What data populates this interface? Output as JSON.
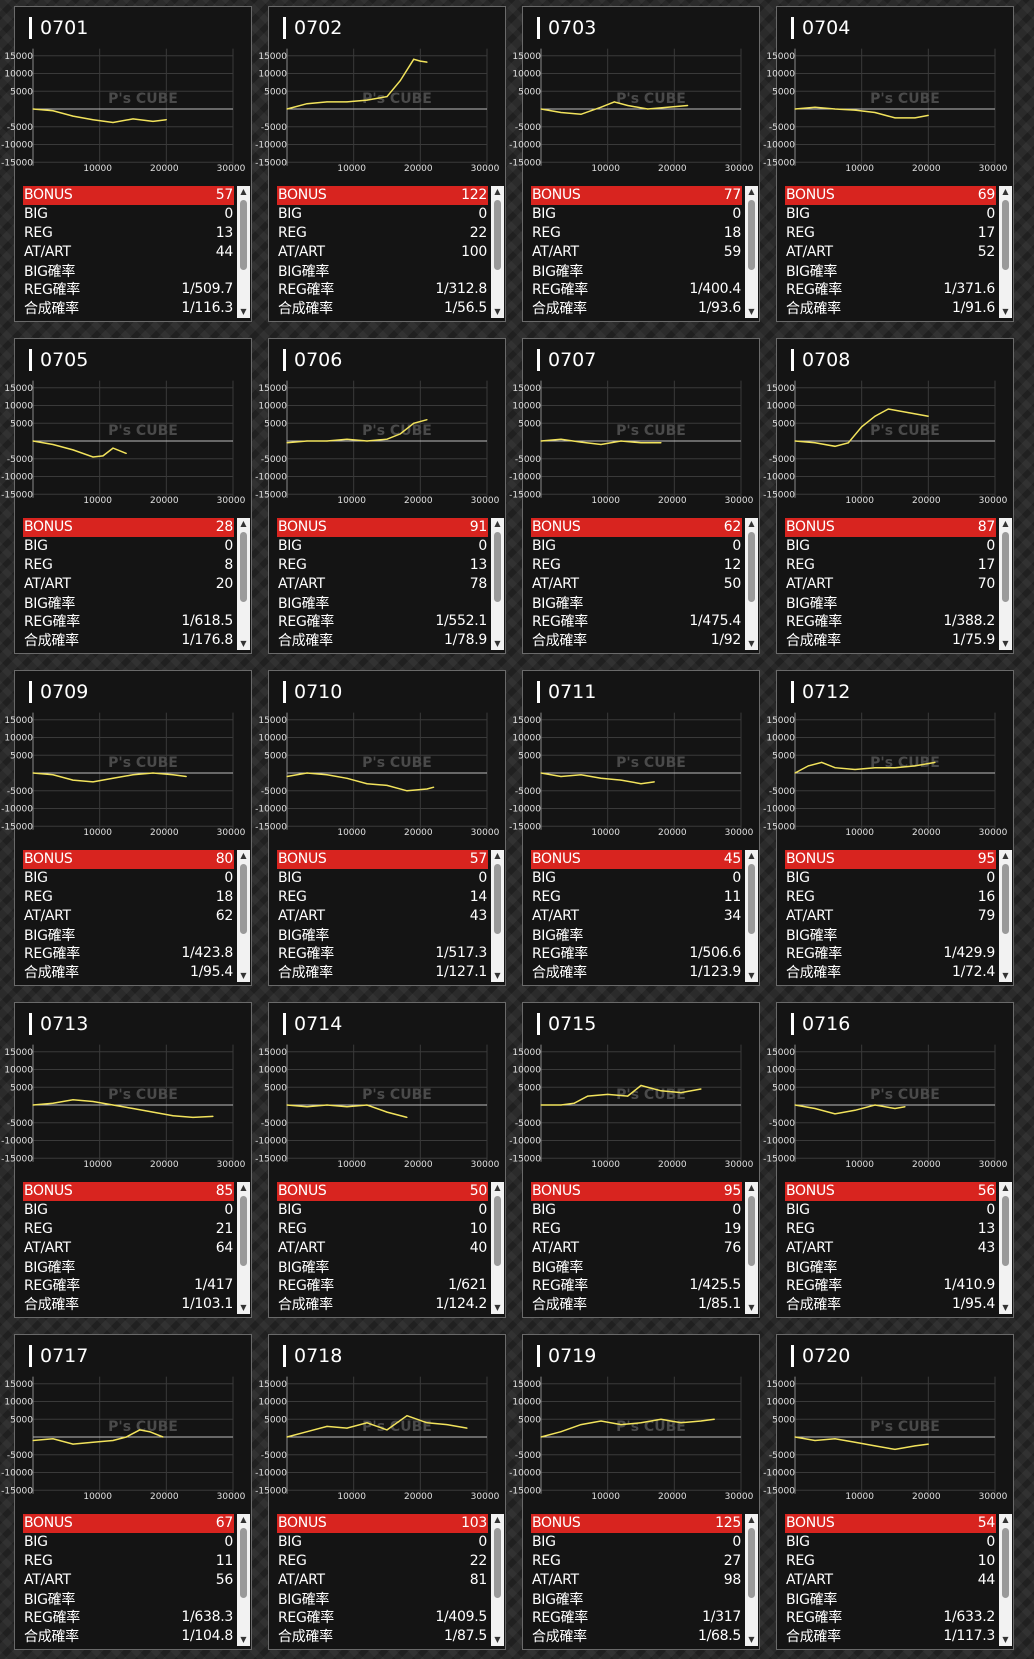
{
  "labels": {
    "bonus": "BONUS",
    "big": "BIG",
    "reg": "REG",
    "atart": "AT/ART",
    "big_rate": "BIG確率",
    "reg_rate": "REG確率",
    "total_rate": "合成確率"
  },
  "chart_axes": {
    "y_ticks": [
      "15000",
      "10000",
      "5000",
      "-5000",
      "-10000",
      "-15000"
    ],
    "x_ticks": [
      "10000",
      "20000",
      "30000"
    ],
    "watermark": "P's CUBE",
    "ylim": [
      -15000,
      15000
    ],
    "xlim": [
      0,
      30000
    ]
  },
  "colors": {
    "line": "#f2e35c",
    "bonus_bg": "#d8241f"
  },
  "scroll": {
    "up_icon": "▲",
    "down_icon": "▼"
  },
  "machines": [
    {
      "id": "0701",
      "bonus": "57",
      "big": "0",
      "reg": "13",
      "atart": "44",
      "big_rate": "",
      "reg_rate": "1/509.7",
      "total_rate": "1/116.3",
      "chart_data": {
        "type": "line",
        "x": [
          0,
          3000,
          6000,
          9000,
          12000,
          15000,
          18000,
          20000
        ],
        "y": [
          0,
          -500,
          -2000,
          -3000,
          -3800,
          -2800,
          -3500,
          -3000
        ]
      }
    },
    {
      "id": "0702",
      "bonus": "122",
      "big": "0",
      "reg": "22",
      "atart": "100",
      "big_rate": "",
      "reg_rate": "1/312.8",
      "total_rate": "1/56.5",
      "chart_data": {
        "type": "line",
        "x": [
          0,
          3000,
          6000,
          9000,
          12000,
          15000,
          17000,
          19000,
          20000,
          21000
        ],
        "y": [
          0,
          1500,
          2000,
          2000,
          2500,
          3500,
          8000,
          14000,
          13500,
          13200
        ]
      }
    },
    {
      "id": "0703",
      "bonus": "77",
      "big": "0",
      "reg": "18",
      "atart": "59",
      "big_rate": "",
      "reg_rate": "1/400.4",
      "total_rate": "1/93.6",
      "chart_data": {
        "type": "line",
        "x": [
          0,
          3000,
          6000,
          9000,
          11000,
          13000,
          16000,
          19000,
          22000
        ],
        "y": [
          0,
          -1000,
          -1500,
          500,
          2000,
          1000,
          0,
          500,
          1000
        ]
      }
    },
    {
      "id": "0704",
      "bonus": "69",
      "big": "0",
      "reg": "17",
      "atart": "52",
      "big_rate": "",
      "reg_rate": "1/371.6",
      "total_rate": "1/91.6",
      "chart_data": {
        "type": "line",
        "x": [
          0,
          3000,
          6000,
          9000,
          12000,
          15000,
          18000,
          20000
        ],
        "y": [
          0,
          500,
          0,
          -300,
          -1000,
          -2500,
          -2500,
          -1800
        ]
      }
    },
    {
      "id": "0705",
      "bonus": "28",
      "big": "0",
      "reg": "8",
      "atart": "20",
      "big_rate": "",
      "reg_rate": "1/618.5",
      "total_rate": "1/176.8",
      "chart_data": {
        "type": "line",
        "x": [
          0,
          3000,
          6000,
          9000,
          10500,
          12000,
          14000
        ],
        "y": [
          0,
          -1000,
          -2500,
          -4500,
          -4200,
          -2000,
          -3500
        ]
      }
    },
    {
      "id": "0706",
      "bonus": "91",
      "big": "0",
      "reg": "13",
      "atart": "78",
      "big_rate": "",
      "reg_rate": "1/552.1",
      "total_rate": "1/78.9",
      "chart_data": {
        "type": "line",
        "x": [
          0,
          3000,
          6000,
          9000,
          12000,
          15000,
          17000,
          19000,
          21000
        ],
        "y": [
          -500,
          0,
          0,
          500,
          0,
          500,
          2000,
          5000,
          6000
        ]
      }
    },
    {
      "id": "0707",
      "bonus": "62",
      "big": "0",
      "reg": "12",
      "atart": "50",
      "big_rate": "",
      "reg_rate": "1/475.4",
      "total_rate": "1/92",
      "chart_data": {
        "type": "line",
        "x": [
          0,
          3000,
          6000,
          9000,
          12000,
          15000,
          18000
        ],
        "y": [
          0,
          500,
          -300,
          -1000,
          0,
          -500,
          -500
        ]
      }
    },
    {
      "id": "0708",
      "bonus": "87",
      "big": "0",
      "reg": "17",
      "atart": "70",
      "big_rate": "",
      "reg_rate": "1/388.2",
      "total_rate": "1/75.9",
      "chart_data": {
        "type": "line",
        "x": [
          0,
          3000,
          6000,
          8000,
          10000,
          12000,
          14000,
          17000,
          20000
        ],
        "y": [
          0,
          -500,
          -1500,
          -500,
          4000,
          7000,
          9000,
          8000,
          7000
        ]
      }
    },
    {
      "id": "0709",
      "bonus": "80",
      "big": "0",
      "reg": "18",
      "atart": "62",
      "big_rate": "",
      "reg_rate": "1/423.8",
      "total_rate": "1/95.4",
      "chart_data": {
        "type": "line",
        "x": [
          0,
          3000,
          6000,
          9000,
          12000,
          15000,
          18000,
          21000,
          23000
        ],
        "y": [
          0,
          -500,
          -2000,
          -2500,
          -1500,
          -500,
          0,
          -500,
          -1000
        ]
      }
    },
    {
      "id": "0710",
      "bonus": "57",
      "big": "0",
      "reg": "14",
      "atart": "43",
      "big_rate": "",
      "reg_rate": "1/517.3",
      "total_rate": "1/127.1",
      "chart_data": {
        "type": "line",
        "x": [
          0,
          3000,
          6000,
          9000,
          12000,
          15000,
          18000,
          21000,
          22000
        ],
        "y": [
          -1000,
          0,
          -500,
          -1500,
          -3000,
          -3500,
          -5000,
          -4500,
          -4000
        ]
      }
    },
    {
      "id": "0711",
      "bonus": "45",
      "big": "0",
      "reg": "11",
      "atart": "34",
      "big_rate": "",
      "reg_rate": "1/506.6",
      "total_rate": "1/123.9",
      "chart_data": {
        "type": "line",
        "x": [
          0,
          3000,
          6000,
          9000,
          12000,
          15000,
          17000
        ],
        "y": [
          0,
          -1000,
          -500,
          -1500,
          -2000,
          -3000,
          -2500
        ]
      }
    },
    {
      "id": "0712",
      "bonus": "95",
      "big": "0",
      "reg": "16",
      "atart": "79",
      "big_rate": "",
      "reg_rate": "1/429.9",
      "total_rate": "1/72.4",
      "chart_data": {
        "type": "line",
        "x": [
          0,
          2000,
          4000,
          6000,
          9000,
          12000,
          15000,
          18000,
          21000
        ],
        "y": [
          0,
          2000,
          3000,
          1500,
          1000,
          1500,
          1500,
          2000,
          3000
        ]
      }
    },
    {
      "id": "0713",
      "bonus": "85",
      "big": "0",
      "reg": "21",
      "atart": "64",
      "big_rate": "",
      "reg_rate": "1/417",
      "total_rate": "1/103.1",
      "chart_data": {
        "type": "line",
        "x": [
          0,
          3000,
          6000,
          9000,
          12000,
          15000,
          18000,
          21000,
          24000,
          27000
        ],
        "y": [
          0,
          500,
          1500,
          1000,
          0,
          -1000,
          -2000,
          -3000,
          -3500,
          -3200
        ]
      }
    },
    {
      "id": "0714",
      "bonus": "50",
      "big": "0",
      "reg": "10",
      "atart": "40",
      "big_rate": "",
      "reg_rate": "1/621",
      "total_rate": "1/124.2",
      "chart_data": {
        "type": "line",
        "x": [
          0,
          3000,
          6000,
          9000,
          12000,
          15000,
          18000
        ],
        "y": [
          0,
          -500,
          0,
          -500,
          0,
          -2000,
          -3500
        ]
      }
    },
    {
      "id": "0715",
      "bonus": "95",
      "big": "0",
      "reg": "19",
      "atart": "76",
      "big_rate": "",
      "reg_rate": "1/425.5",
      "total_rate": "1/85.1",
      "chart_data": {
        "type": "line",
        "x": [
          0,
          3000,
          5000,
          7000,
          10000,
          13000,
          15000,
          18000,
          21000,
          24000
        ],
        "y": [
          0,
          0,
          500,
          2500,
          3000,
          2500,
          5500,
          4000,
          3500,
          4500
        ]
      }
    },
    {
      "id": "0716",
      "bonus": "56",
      "big": "0",
      "reg": "13",
      "atart": "43",
      "big_rate": "",
      "reg_rate": "1/410.9",
      "total_rate": "1/95.4",
      "chart_data": {
        "type": "line",
        "x": [
          0,
          3000,
          6000,
          9000,
          12000,
          15000,
          16500
        ],
        "y": [
          0,
          -1000,
          -2500,
          -1500,
          0,
          -1000,
          -500
        ]
      }
    },
    {
      "id": "0717",
      "bonus": "67",
      "big": "0",
      "reg": "11",
      "atart": "56",
      "big_rate": "",
      "reg_rate": "1/638.3",
      "total_rate": "1/104.8",
      "chart_data": {
        "type": "line",
        "x": [
          0,
          3000,
          6000,
          9000,
          12000,
          14000,
          16000,
          17500,
          19500
        ],
        "y": [
          -1000,
          -500,
          -2000,
          -1500,
          -1000,
          0,
          2000,
          1500,
          0
        ]
      }
    },
    {
      "id": "0718",
      "bonus": "103",
      "big": "0",
      "reg": "22",
      "atart": "81",
      "big_rate": "",
      "reg_rate": "1/409.5",
      "total_rate": "1/87.5",
      "chart_data": {
        "type": "line",
        "x": [
          0,
          3000,
          6000,
          9000,
          12000,
          15000,
          18000,
          21000,
          24000,
          27000
        ],
        "y": [
          0,
          1500,
          3000,
          2500,
          4000,
          2000,
          6000,
          4000,
          3500,
          2500
        ]
      }
    },
    {
      "id": "0719",
      "bonus": "125",
      "big": "0",
      "reg": "27",
      "atart": "98",
      "big_rate": "",
      "reg_rate": "1/317",
      "total_rate": "1/68.5",
      "chart_data": {
        "type": "line",
        "x": [
          0,
          3000,
          6000,
          9000,
          12000,
          15000,
          18000,
          21000,
          24000,
          26000
        ],
        "y": [
          0,
          1500,
          3500,
          4500,
          3500,
          4000,
          5000,
          4000,
          4500,
          5000
        ]
      }
    },
    {
      "id": "0720",
      "bonus": "54",
      "big": "0",
      "reg": "10",
      "atart": "44",
      "big_rate": "",
      "reg_rate": "1/633.2",
      "total_rate": "1/117.3",
      "chart_data": {
        "type": "line",
        "x": [
          0,
          3000,
          6000,
          9000,
          12000,
          15000,
          18000,
          20000
        ],
        "y": [
          0,
          -1000,
          -500,
          -1500,
          -2500,
          -3500,
          -2500,
          -2000
        ]
      }
    }
  ]
}
